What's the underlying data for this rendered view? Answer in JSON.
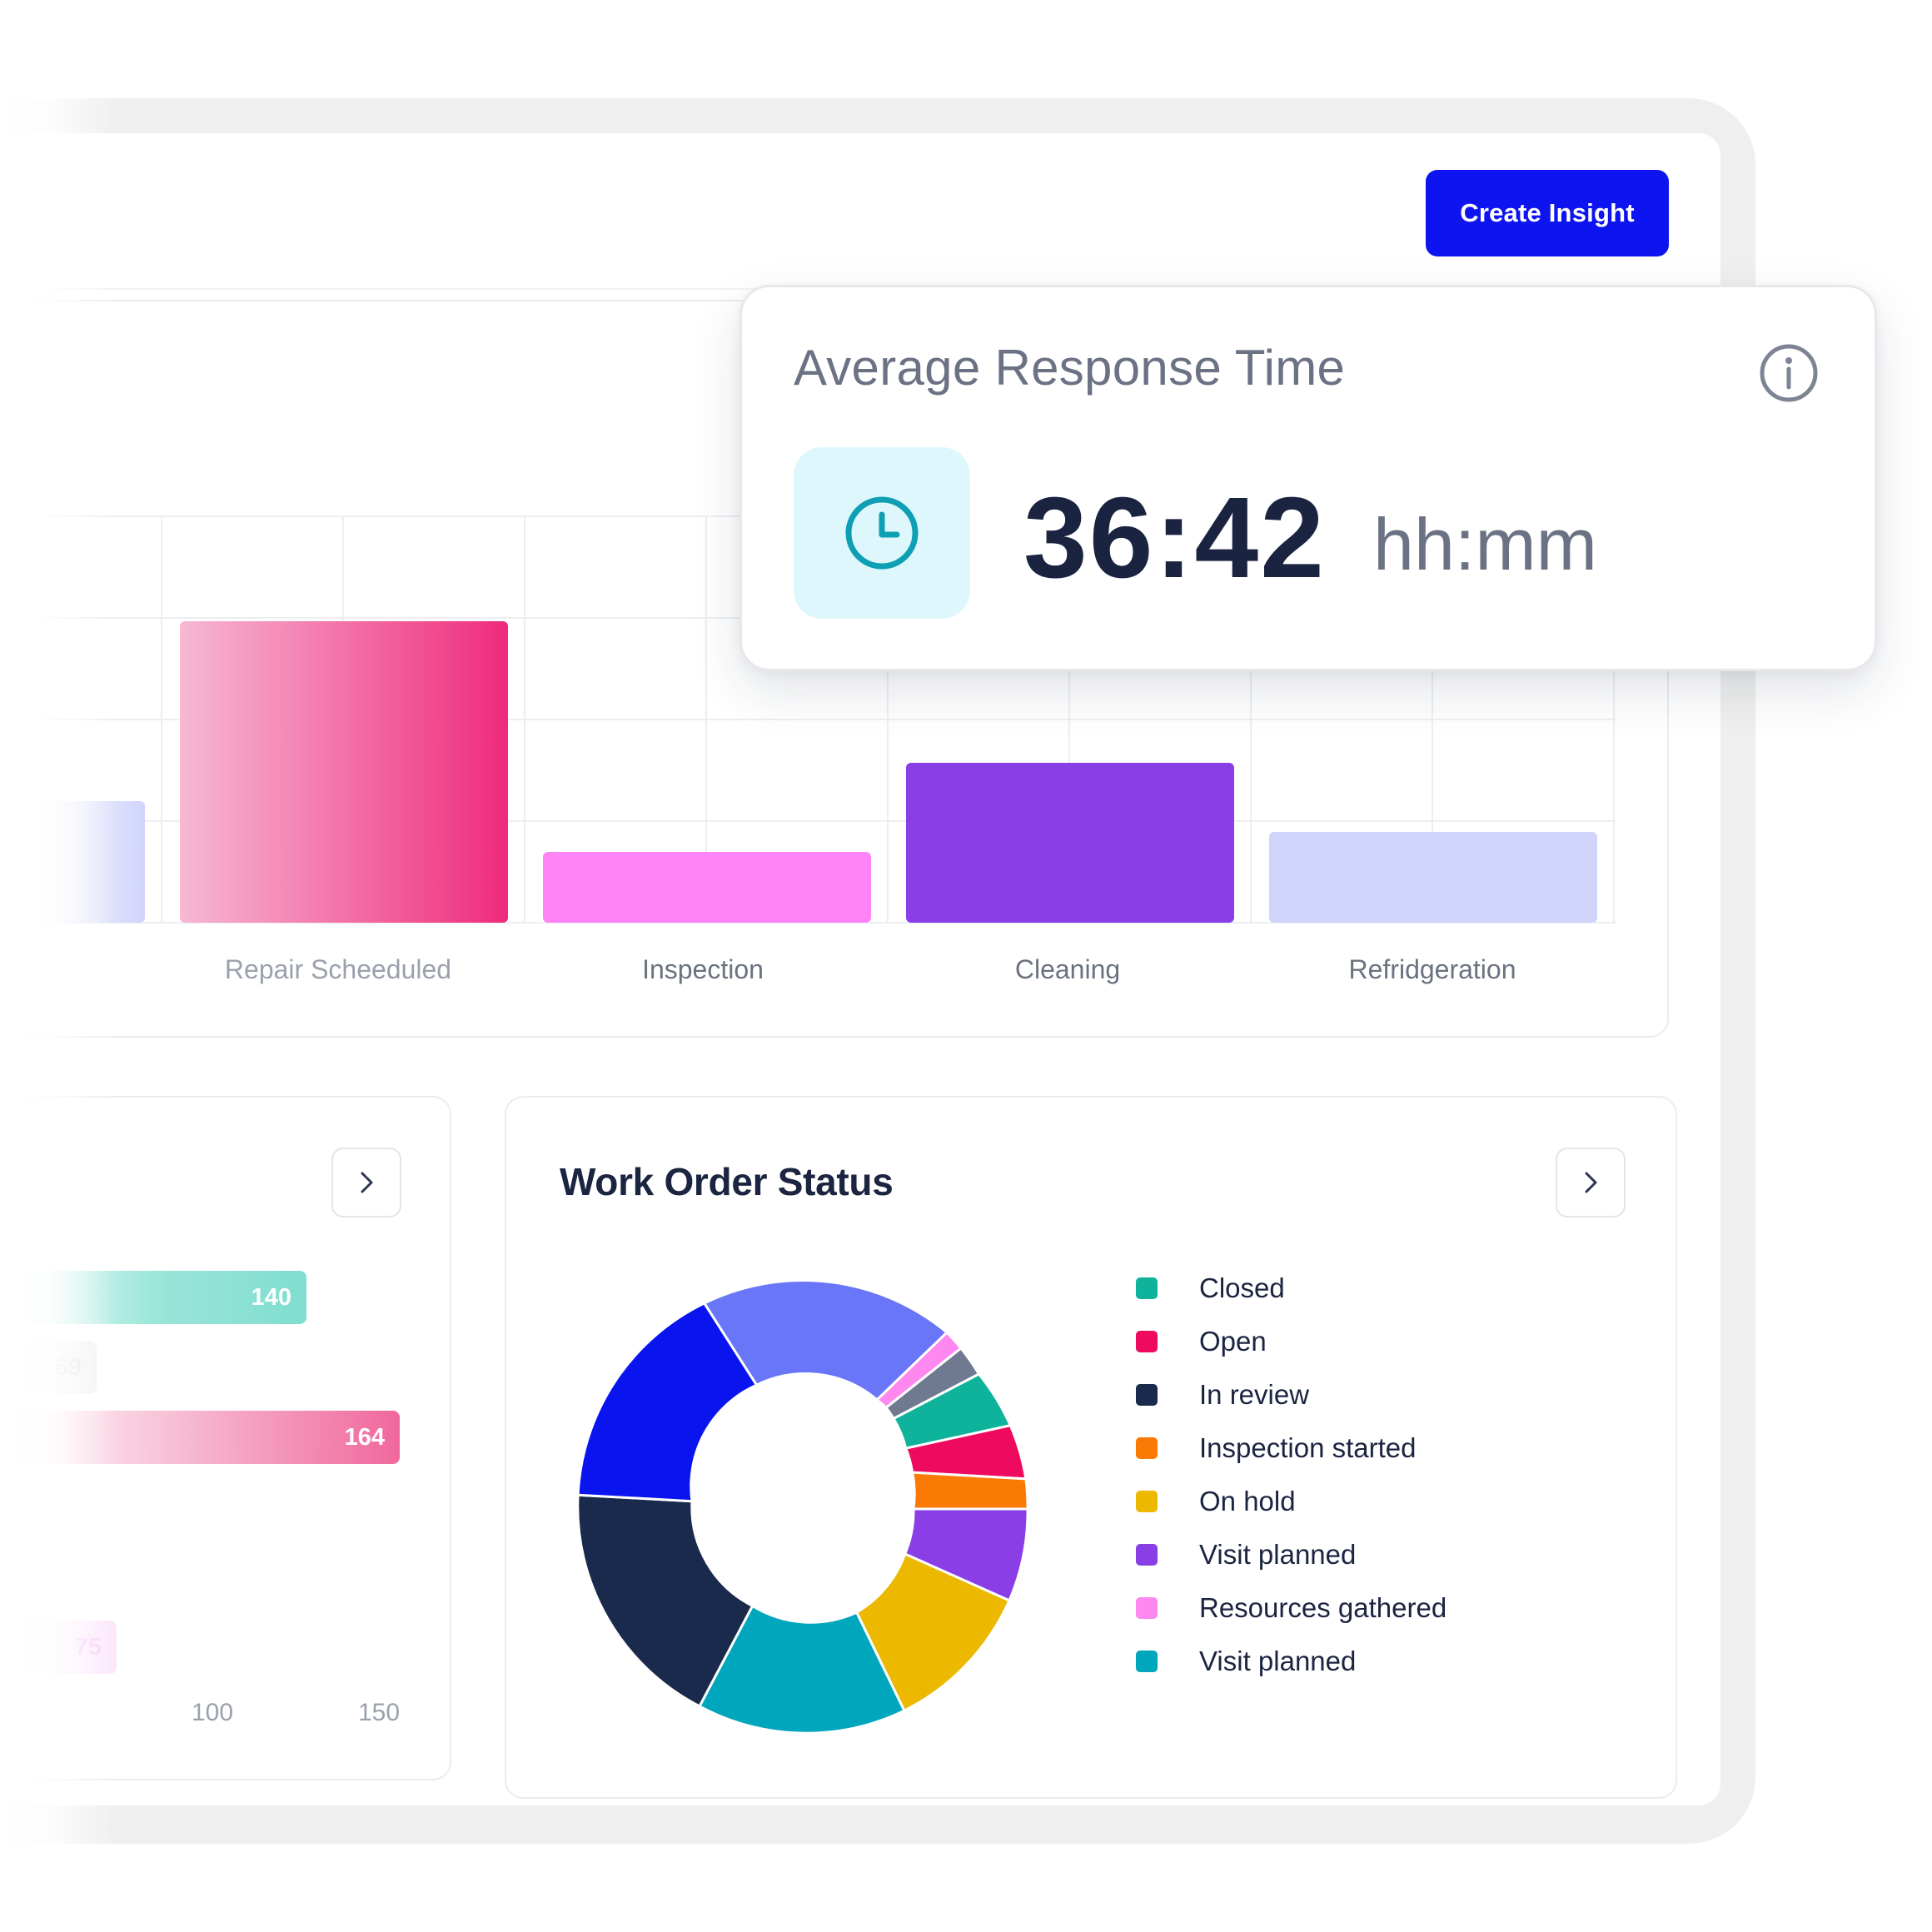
{
  "toolbar": {
    "create_label": "Create Insight"
  },
  "response_card": {
    "title": "Average Response Time",
    "value": "36:42",
    "unit": "hh:mm",
    "icon": "clock-icon",
    "info_icon": "info-icon"
  },
  "bar_chart": {
    "categories": [
      "Repair Scheeduled",
      "Inspection",
      "Cleaning",
      "Refridgeration"
    ],
    "colors": [
      "#f0287a",
      "#ff85f6",
      "#8a3fe6",
      "#d0d4fb"
    ]
  },
  "left_card": {
    "bars": [
      {
        "label": "140",
        "color": "#7fddd0"
      },
      {
        "label": "69",
        "color": "#eeeeee"
      },
      {
        "label": "164",
        "color": "#f0689c"
      },
      {
        "label": "75",
        "color": "#fbe6fb"
      }
    ],
    "ticks": [
      "100",
      "150"
    ]
  },
  "work_order": {
    "title": "Work Order Status",
    "legend": [
      {
        "label": "Closed",
        "color": "#0fb39b"
      },
      {
        "label": "Open",
        "color": "#ee0a5e"
      },
      {
        "label": "In review",
        "color": "#1a2a4c"
      },
      {
        "label": "Inspection started",
        "color": "#fb7a05"
      },
      {
        "label": "On hold",
        "color": "#ecb800"
      },
      {
        "label": "Visit planned",
        "color": "#8a3fe6"
      },
      {
        "label": "Resources gathered",
        "color": "#ff88f0"
      },
      {
        "label": "Visit planned",
        "color": "#00a6bc"
      }
    ]
  }
}
